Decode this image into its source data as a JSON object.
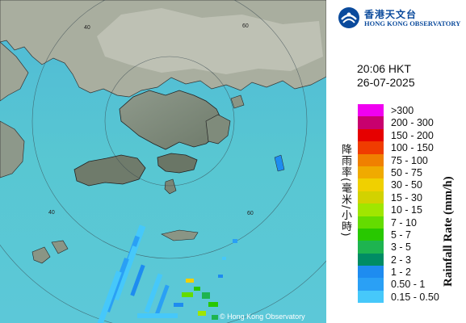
{
  "header": {
    "logo_zh": "香港天文台",
    "logo_en": "HONG KONG OBSERVATORY"
  },
  "timestamp": {
    "time": "20:06 HKT",
    "date": "26-07-2025"
  },
  "legend": {
    "title_zh": "降雨率(毫米/小時)",
    "title_en": "Rainfall Rate (mm/h)",
    "items": [
      {
        "label": ">300",
        "color": "#f000f0"
      },
      {
        "label": "200 - 300",
        "color": "#c8006e"
      },
      {
        "label": "150 - 200",
        "color": "#e60000"
      },
      {
        "label": "100 - 150",
        "color": "#f03c00"
      },
      {
        "label": "75 - 100",
        "color": "#f08000"
      },
      {
        "label": "50 - 75",
        "color": "#f0aa00"
      },
      {
        "label": "30 - 50",
        "color": "#f0d000"
      },
      {
        "label": "15 - 30",
        "color": "#d2d200"
      },
      {
        "label": "10 - 15",
        "color": "#a0e600"
      },
      {
        "label": "7 - 10",
        "color": "#64dc00"
      },
      {
        "label": "5 - 7",
        "color": "#28c800"
      },
      {
        "label": "3 - 5",
        "color": "#1eb450"
      },
      {
        "label": "2 - 3",
        "color": "#008c64"
      },
      {
        "label": "1 - 2",
        "color": "#1e8cf0"
      },
      {
        "label": "0.50 - 1",
        "color": "#2aa0f5"
      },
      {
        "label": "0.15 - 0.50",
        "color": "#46c8fa"
      }
    ]
  },
  "map": {
    "copyright": "© Hong Kong Observatory",
    "range_ring_labels": [
      "40",
      "60",
      "40",
      "60"
    ]
  }
}
